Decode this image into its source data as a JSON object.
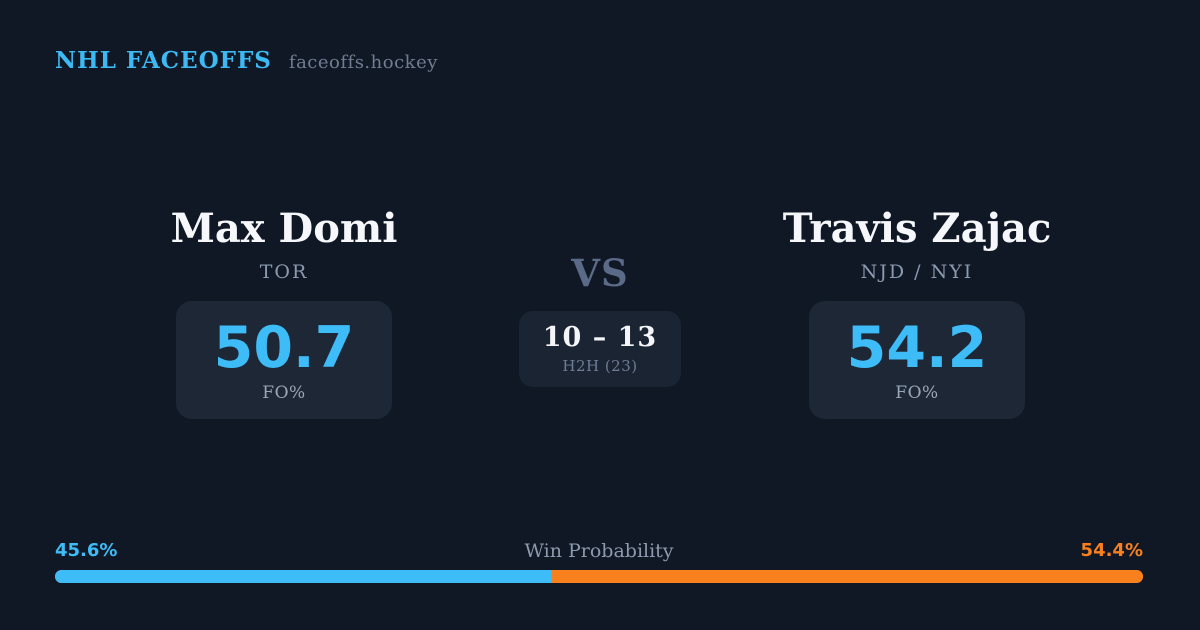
{
  "header": {
    "brand": "NHL FACEOFFS",
    "site": "faceoffs.hockey"
  },
  "matchup": {
    "left_player": {
      "name": "Max Domi",
      "team": "TOR",
      "stat_value": "50.7",
      "stat_label": "FO%"
    },
    "center": {
      "vs_label": "VS",
      "h2h_score": "10 – 13",
      "h2h_label": "H2H (23)"
    },
    "right_player": {
      "name": "Travis Zajac",
      "team": "NJD / NYI",
      "stat_value": "54.2",
      "stat_label": "FO%"
    }
  },
  "win_probability": {
    "title": "Win Probability",
    "left_label": "45.6%",
    "right_label": "54.4%",
    "left_value": 45.6,
    "right_value": 54.4,
    "left_color": "#3ebcf7",
    "right_color": "#f8801d"
  },
  "colors": {
    "background": "#101826",
    "panel": "#1d2736",
    "accent_blue": "#3ebcf7",
    "accent_orange": "#f8801d"
  }
}
